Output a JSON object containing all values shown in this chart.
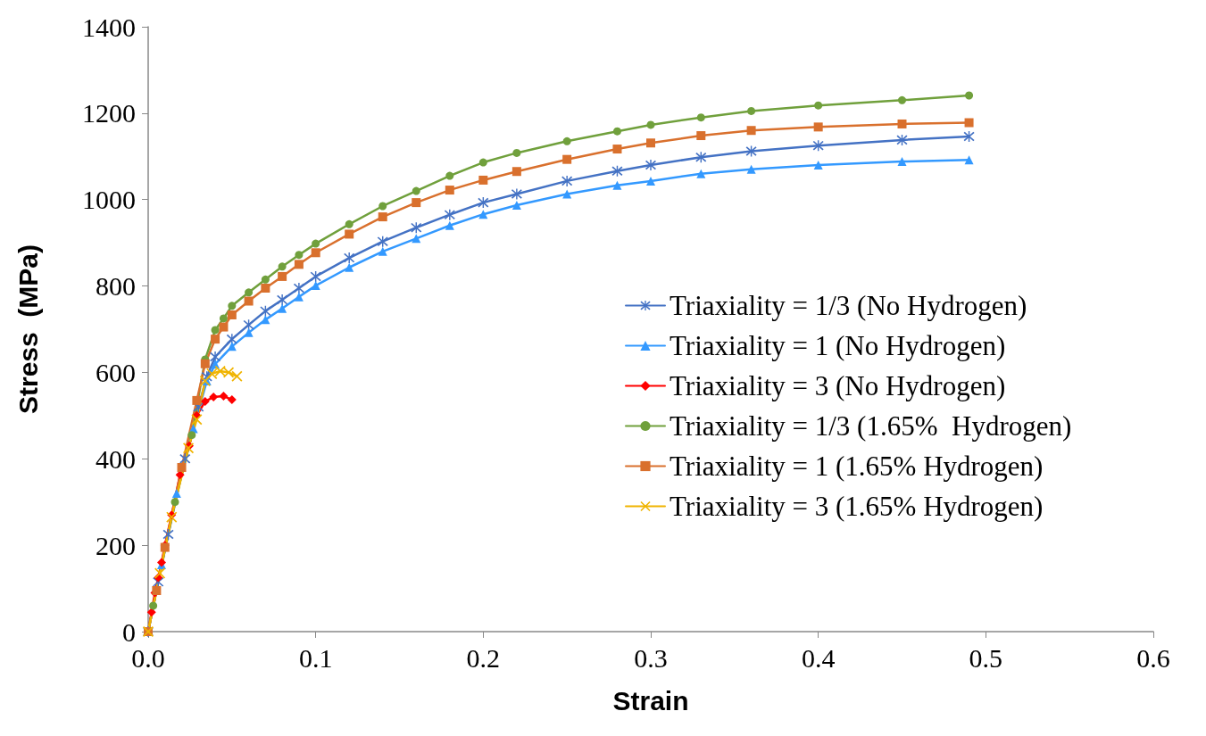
{
  "chart_data": {
    "type": "line",
    "xlabel": "Strain",
    "ylabel": "Stress  (MPa)",
    "xlim": [
      0,
      0.6
    ],
    "xticks": [
      {
        "value": 0,
        "label": "0.0"
      },
      0.1,
      0.2,
      0.3,
      0.4,
      0.5,
      0.6
    ],
    "ylim": [
      0,
      1400
    ],
    "yticks": [
      0,
      200,
      400,
      600,
      800,
      1000,
      1200,
      1400
    ],
    "grid": false,
    "legend": "right",
    "series": [
      {
        "name": "Triaxiality = 1/3 (No Hydrogen)",
        "color": "#4472c4",
        "marker": "star",
        "x": [
          0,
          0.006,
          0.012,
          0.022,
          0.03,
          0.035,
          0.04,
          0.05,
          0.06,
          0.07,
          0.08,
          0.09,
          0.1,
          0.12,
          0.14,
          0.16,
          0.18,
          0.2,
          0.22,
          0.25,
          0.28,
          0.3,
          0.33,
          0.36,
          0.4,
          0.45,
          0.49
        ],
        "values": [
          0,
          115,
          225,
          400,
          520,
          590,
          636,
          677,
          710,
          742,
          768,
          795,
          822,
          865,
          903,
          935,
          965,
          993,
          1013,
          1043,
          1066,
          1080,
          1098,
          1112,
          1125,
          1138,
          1146
        ]
      },
      {
        "name": "Triaxiality = 1 (No Hydrogen)",
        "color": "#3399ff",
        "marker": "triangle",
        "x": [
          0,
          0.008,
          0.017,
          0.027,
          0.035,
          0.04,
          0.05,
          0.06,
          0.07,
          0.08,
          0.09,
          0.1,
          0.12,
          0.14,
          0.16,
          0.18,
          0.2,
          0.22,
          0.25,
          0.28,
          0.3,
          0.33,
          0.36,
          0.4,
          0.45,
          0.49
        ],
        "values": [
          0,
          155,
          320,
          470,
          580,
          619,
          660,
          692,
          722,
          748,
          775,
          801,
          843,
          880,
          910,
          940,
          966,
          987,
          1013,
          1033,
          1043,
          1060,
          1070,
          1080,
          1088,
          1092
        ]
      },
      {
        "name": "Triaxiality = 3 (No Hydrogen)",
        "color": "#ff0000",
        "marker": "diamond",
        "x": [
          0,
          0.002,
          0.004,
          0.006,
          0.008,
          0.01,
          0.014,
          0.019,
          0.0245,
          0.029,
          0.034,
          0.039,
          0.045,
          0.05
        ],
        "values": [
          0,
          45,
          90,
          125,
          160,
          200,
          270,
          363,
          430,
          500,
          533,
          543,
          545,
          537
        ]
      },
      {
        "name": "Triaxiality = 1/3 (1.65%  Hydrogen)",
        "color": "#70a03c",
        "marker": "circle",
        "x": [
          0,
          0.003,
          0.016,
          0.026,
          0.034,
          0.04,
          0.045,
          0.05,
          0.06,
          0.07,
          0.08,
          0.09,
          0.1,
          0.12,
          0.14,
          0.16,
          0.18,
          0.2,
          0.22,
          0.25,
          0.28,
          0.3,
          0.33,
          0.36,
          0.4,
          0.45,
          0.49
        ],
        "values": [
          0,
          60,
          300,
          455,
          630,
          698,
          725,
          754,
          785,
          815,
          845,
          872,
          898,
          943,
          985,
          1020,
          1055,
          1086,
          1108,
          1135,
          1158,
          1173,
          1190,
          1205,
          1218,
          1230,
          1241
        ]
      },
      {
        "name": "Triaxiality = 1 (1.65% Hydrogen)",
        "color": "#d9702d",
        "marker": "square",
        "x": [
          0,
          0.005,
          0.01,
          0.02,
          0.029,
          0.034,
          0.04,
          0.045,
          0.05,
          0.06,
          0.07,
          0.08,
          0.09,
          0.1,
          0.12,
          0.14,
          0.16,
          0.18,
          0.2,
          0.22,
          0.25,
          0.28,
          0.3,
          0.33,
          0.36,
          0.4,
          0.45,
          0.49
        ],
        "values": [
          0,
          95,
          195,
          380,
          535,
          620,
          677,
          705,
          733,
          765,
          795,
          822,
          850,
          877,
          920,
          960,
          993,
          1022,
          1045,
          1065,
          1093,
          1117,
          1131,
          1148,
          1160,
          1168,
          1175,
          1178
        ]
      },
      {
        "name": "Triaxiality = 3 (1.65% Hydrogen)",
        "color": "#f0b400",
        "marker": "cross",
        "x": [
          0,
          0.007,
          0.014,
          0.024,
          0.029,
          0.034,
          0.038,
          0.043,
          0.048,
          0.053
        ],
        "values": [
          0,
          135,
          265,
          425,
          491,
          580,
          597,
          603,
          600,
          591
        ]
      }
    ]
  }
}
